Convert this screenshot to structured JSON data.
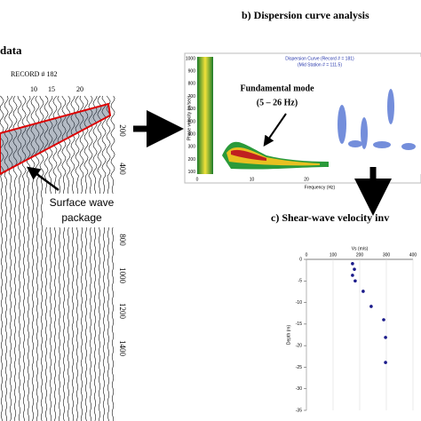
{
  "panel_a": {
    "title": "data",
    "record": "RECORD # 182",
    "top_ticks": [
      "10",
      "15",
      "20"
    ],
    "side_ticks": [
      "200",
      "400",
      "800",
      "1000",
      "1200",
      "1400"
    ],
    "annotation": [
      "Surface wave",
      "package"
    ]
  },
  "panel_b": {
    "title": "b) Dispersion curve analysis",
    "plot_title": [
      "Dispersion Curve (Record # = 181)",
      "(Mid Station # = 111.5)"
    ],
    "y_label": "Phase velocity (m/sec)",
    "x_label": "Frequency (Hz)",
    "y_ticks": [
      "1000",
      "900",
      "800",
      "700",
      "600",
      "500",
      "400",
      "300",
      "200",
      "100"
    ],
    "x_ticks": [
      "0",
      "10",
      "20"
    ],
    "annotation": [
      "Fundamental mode",
      "(5 – 26 Hz)"
    ]
  },
  "panel_c": {
    "title": "c) Shear-wave velocity inv",
    "x_label": "Vs (m/s)",
    "y_label": "Depth (m)",
    "xlim": [
      0,
      400
    ],
    "ylim": [
      -35,
      0
    ],
    "xticks": [
      0,
      100,
      200,
      300,
      400
    ],
    "yticks": [
      0,
      -5,
      -10,
      -15,
      -20,
      -25,
      -30,
      -35
    ],
    "points": {
      "x": [
        173,
        180,
        173,
        183,
        213,
        243,
        290,
        297,
        297
      ],
      "y": [
        -1,
        -2.3,
        -3.7,
        -5,
        -7.4,
        -10.9,
        -14,
        -18.1,
        -23.9
      ]
    }
  }
}
